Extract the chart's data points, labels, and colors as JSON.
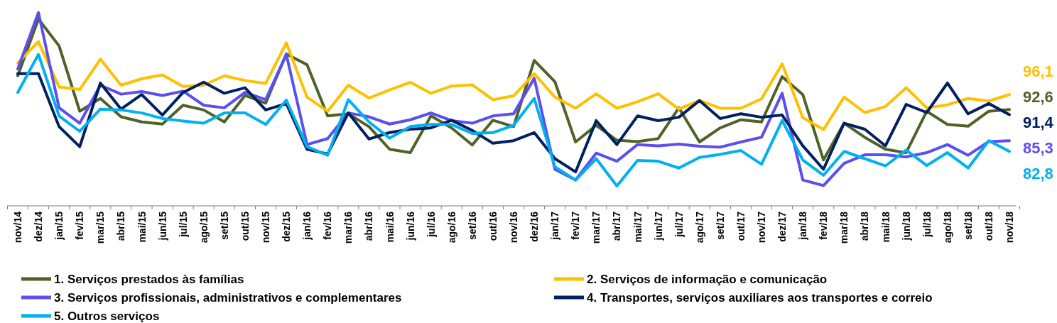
{
  "chart_data": {
    "type": "line",
    "legend": "bottom",
    "categories": [
      "nov/14",
      "dez/14",
      "jan/15",
      "fev/15",
      "mar/15",
      "abr/15",
      "mai/15",
      "jun/15",
      "jul/15",
      "ago/15",
      "set/15",
      "out/15",
      "nov/15",
      "dez/15",
      "jan/16",
      "fev/16",
      "mar/16",
      "abr/16",
      "mai/16",
      "jun/16",
      "jul/16",
      "ago/16",
      "set/16",
      "out/16",
      "nov/16",
      "dez/16",
      "jan/17",
      "fev/17",
      "mar/17",
      "abr/17",
      "mai/17",
      "jun/17",
      "jul/17",
      "ago/17",
      "set/17",
      "out/17",
      "nov/17",
      "dez/17",
      "jan/18",
      "fev/18",
      "mar/18",
      "abr/18",
      "mai/18",
      "jun/18",
      "jul/18",
      "ago/18",
      "set/18",
      "out/18",
      "nov/18"
    ],
    "series": [
      {
        "name": "1. Serviços prestados às famílias",
        "color": "#4f6228",
        "values": [
          100.5,
          113.8,
          107.5,
          92.2,
          95.2,
          90.9,
          89.7,
          89.2,
          93.6,
          92.5,
          89.7,
          95.9,
          94.1,
          105.6,
          103.1,
          91.1,
          91.6,
          88.6,
          83.3,
          82.5,
          91.1,
          88.3,
          84.3,
          90.1,
          88.6,
          104.1,
          99.1,
          85.0,
          88.9,
          85.4,
          85.1,
          85.8,
          93.0,
          85.0,
          88.3,
          90.2,
          89.7,
          100.3,
          96.1,
          80.8,
          89.4,
          86.1,
          83.3,
          82.5,
          92.2,
          89.1,
          88.7,
          92.2,
          92.6
        ],
        "value_labels": [
          null,
          null,
          null,
          null,
          null,
          null,
          null,
          null,
          null,
          null,
          null,
          null,
          null,
          null,
          null,
          null,
          null,
          null,
          null,
          null,
          null,
          null,
          null,
          null,
          null,
          null,
          null,
          null,
          null,
          null,
          null,
          null,
          null,
          null,
          null,
          null,
          null,
          null,
          null,
          null,
          null,
          null,
          null,
          null,
          null,
          null,
          null,
          null,
          "92,6"
        ]
      },
      {
        "name": "2. Serviços de informação e comunicação",
        "color": "#ffc000",
        "values": [
          103.5,
          108.5,
          97.9,
          97.3,
          104.4,
          98.3,
          99.8,
          100.7,
          98.0,
          98.3,
          100.5,
          99.4,
          98.7,
          108.2,
          95.5,
          92.2,
          98.3,
          95.3,
          97.2,
          99.0,
          96.4,
          98.1,
          98.4,
          94.9,
          95.8,
          101.0,
          95.5,
          92.9,
          96.3,
          92.9,
          94.4,
          96.3,
          92.7,
          94.7,
          92.9,
          92.9,
          95.1,
          103.3,
          90.7,
          87.9,
          95.5,
          91.9,
          93.3,
          97.7,
          93.0,
          93.7,
          95.2,
          94.6,
          96.1
        ],
        "value_labels": [
          null,
          null,
          null,
          null,
          null,
          null,
          null,
          null,
          null,
          null,
          null,
          null,
          null,
          null,
          null,
          null,
          null,
          null,
          null,
          null,
          null,
          null,
          null,
          null,
          null,
          null,
          null,
          null,
          null,
          null,
          null,
          null,
          null,
          null,
          null,
          null,
          null,
          null,
          null,
          null,
          null,
          null,
          null,
          null,
          null,
          null,
          null,
          null,
          "96,1"
        ]
      },
      {
        "name": "3. Serviços profissionais, administrativos e complementares",
        "color": "#5b4ff0",
        "values": [
          102.1,
          115.3,
          93.0,
          89.4,
          98.3,
          96.2,
          96.8,
          95.9,
          96.9,
          93.6,
          93.0,
          96.6,
          94.9,
          105.5,
          84.4,
          85.8,
          91.8,
          90.9,
          89.2,
          90.2,
          91.8,
          90.0,
          89.4,
          91.1,
          91.6,
          99.9,
          78.6,
          76.1,
          82.4,
          80.5,
          84.4,
          84.1,
          84.5,
          84.0,
          83.8,
          85.0,
          86.1,
          96.4,
          76.1,
          74.8,
          80.0,
          82.0,
          82.0,
          81.5,
          82.5,
          84.4,
          81.9,
          85.1,
          85.3
        ],
        "value_labels": [
          null,
          null,
          null,
          null,
          null,
          null,
          null,
          null,
          null,
          null,
          null,
          null,
          null,
          null,
          null,
          null,
          null,
          null,
          null,
          null,
          null,
          null,
          null,
          null,
          null,
          null,
          null,
          null,
          null,
          null,
          null,
          null,
          null,
          null,
          null,
          null,
          null,
          null,
          null,
          null,
          null,
          null,
          null,
          null,
          null,
          null,
          null,
          null,
          "85,3"
        ]
      },
      {
        "name": "4. Transportes, serviços auxiliares aos transportes e correio",
        "color": "#002060",
        "values": [
          101.0,
          101.0,
          88.6,
          83.9,
          98.8,
          92.7,
          96.1,
          91.3,
          96.6,
          99.0,
          96.4,
          97.7,
          92.5,
          94.0,
          83.3,
          82.2,
          91.8,
          85.7,
          87.2,
          88.0,
          88.3,
          90.1,
          87.7,
          84.7,
          85.3,
          87.2,
          81.1,
          78.0,
          90.0,
          84.4,
          91.1,
          90.0,
          90.8,
          94.7,
          90.5,
          91.6,
          90.8,
          91.3,
          84.1,
          78.6,
          89.4,
          88.0,
          84.1,
          93.8,
          91.9,
          98.8,
          91.6,
          94.0,
          91.4
        ],
        "value_labels": [
          null,
          null,
          null,
          null,
          null,
          null,
          null,
          null,
          null,
          null,
          null,
          null,
          null,
          null,
          null,
          null,
          null,
          null,
          null,
          null,
          null,
          null,
          null,
          null,
          null,
          null,
          null,
          null,
          null,
          null,
          null,
          null,
          null,
          null,
          null,
          null,
          null,
          null,
          null,
          null,
          null,
          null,
          null,
          null,
          null,
          null,
          null,
          null,
          "91,4"
        ]
      },
      {
        "name": "5. Outros serviços",
        "color": "#00b0f0",
        "values": [
          96.6,
          105.5,
          91.1,
          87.5,
          92.7,
          92.5,
          91.8,
          90.5,
          89.9,
          89.4,
          91.8,
          91.8,
          89.1,
          94.8,
          83.9,
          81.9,
          94.9,
          89.7,
          85.9,
          88.6,
          89.1,
          89.1,
          87.0,
          87.2,
          88.9,
          95.2,
          79.2,
          76.1,
          81.1,
          74.7,
          80.7,
          80.5,
          78.9,
          81.4,
          82.1,
          83.0,
          79.8,
          90.0,
          80.8,
          77.2,
          82.8,
          81.1,
          79.4,
          83.1,
          79.5,
          82.5,
          78.9,
          85.3,
          82.8
        ],
        "value_labels": [
          null,
          null,
          null,
          null,
          null,
          null,
          null,
          null,
          null,
          null,
          null,
          null,
          null,
          null,
          null,
          null,
          null,
          null,
          null,
          null,
          null,
          null,
          null,
          null,
          null,
          null,
          null,
          null,
          null,
          null,
          null,
          null,
          null,
          null,
          null,
          null,
          null,
          null,
          null,
          null,
          null,
          null,
          null,
          null,
          null,
          null,
          null,
          null,
          "82,8"
        ]
      }
    ]
  }
}
